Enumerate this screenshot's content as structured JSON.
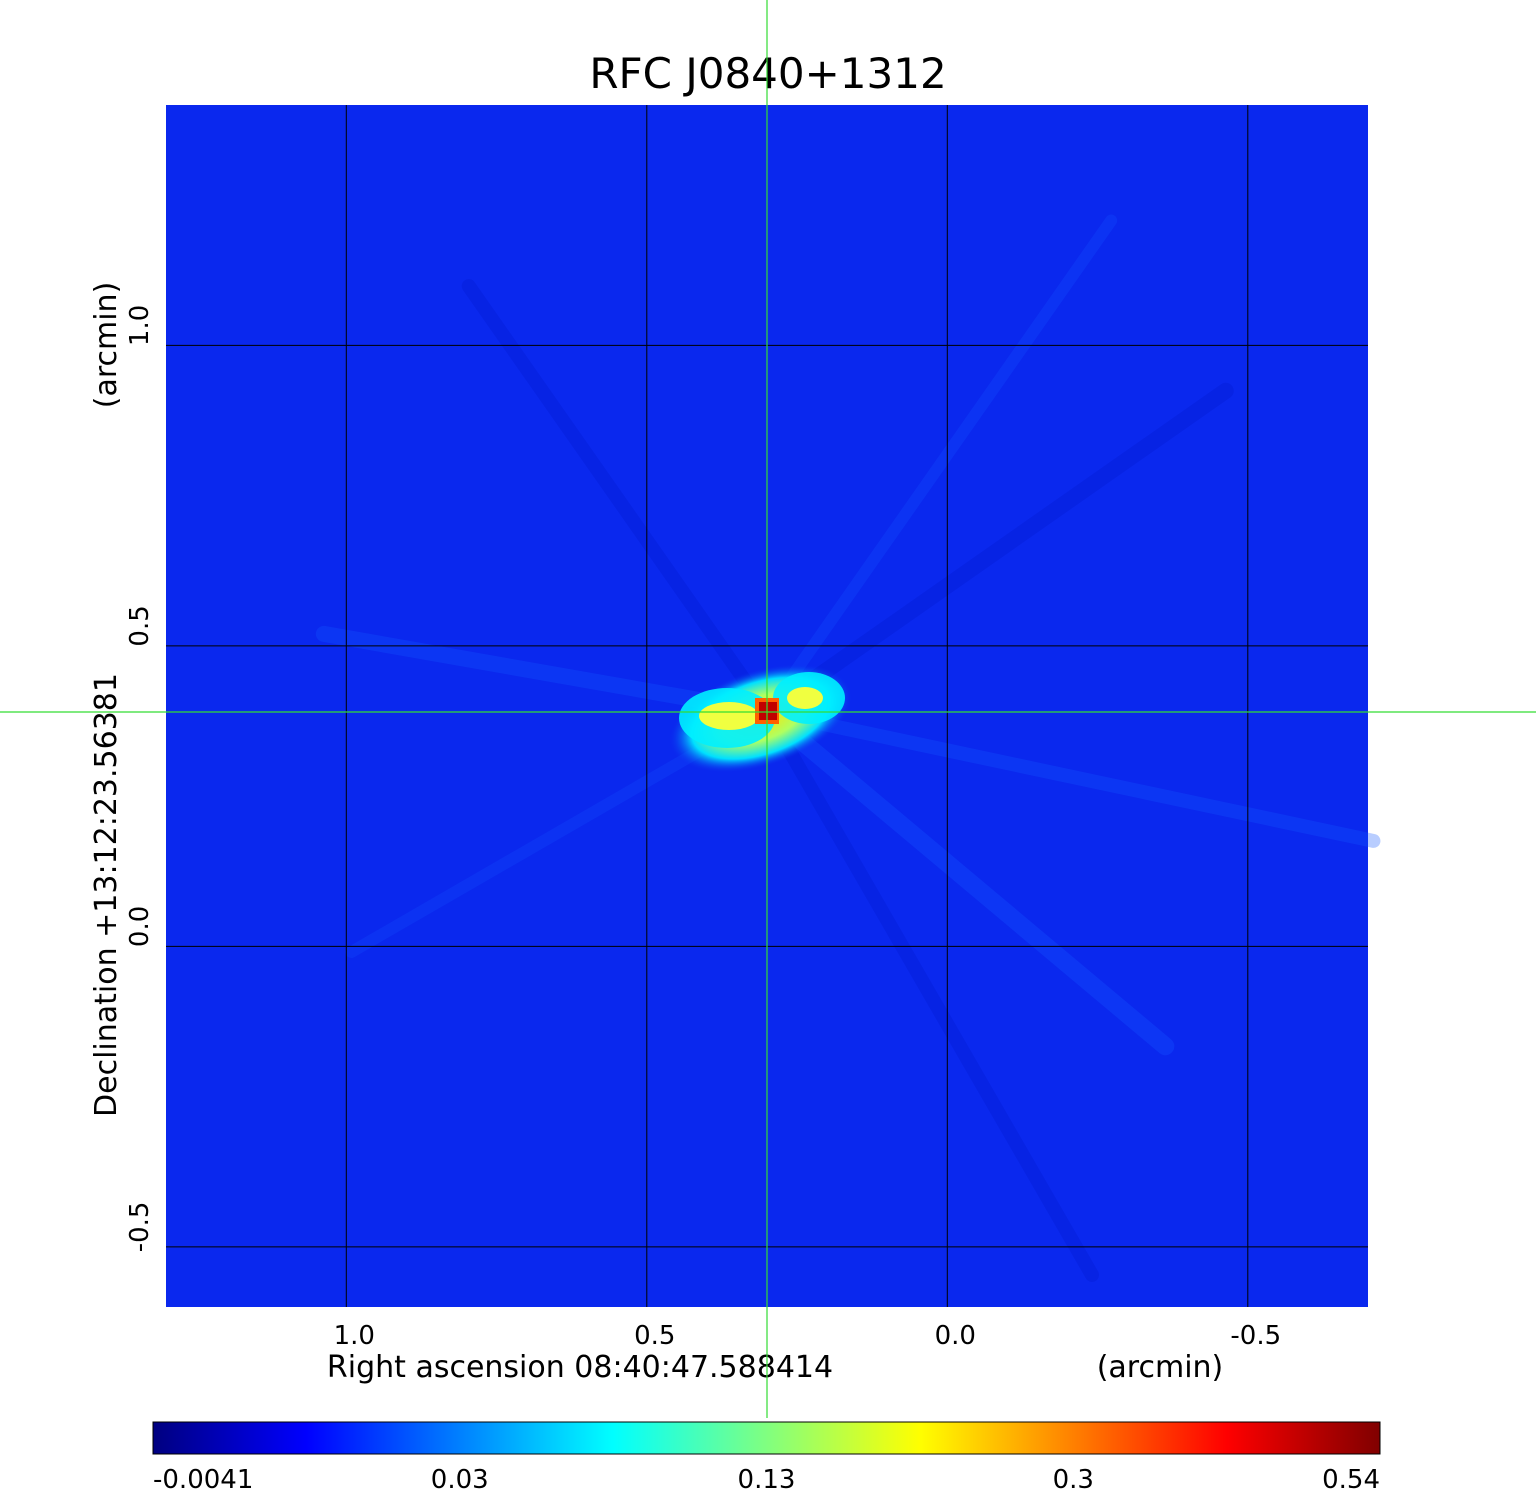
{
  "chart_data": {
    "type": "heatmap",
    "title": "RFC J0840+1312",
    "title_color": "#0a14cc",
    "xlabel": "Right ascension  08:40:47.588414",
    "xunit": "(arcmin)",
    "ylabel": "Declination  +13:12:23.56381",
    "yunit": "(arcmin)",
    "x_axis_reversed": true,
    "xlim": [
      1.3,
      -0.7
    ],
    "ylim": [
      -0.6,
      1.4
    ],
    "xticks": [
      1.0,
      0.5,
      0.0,
      -0.5
    ],
    "xtick_labels": [
      "1.0",
      "0.5",
      "0.0",
      "-0.5"
    ],
    "yticks": [
      -0.5,
      0.0,
      0.5,
      1.0
    ],
    "ytick_labels": [
      "-0.5",
      "0.0",
      "0.5",
      "1.0"
    ],
    "grid": true,
    "crosshair": {
      "x": 0.3,
      "y": 0.39,
      "color": "#33dd33"
    },
    "source_peak": {
      "x": 0.3,
      "y": 0.39,
      "value": 0.54
    },
    "colormap": "jet",
    "colorbar": {
      "ticks": [
        -0.0041,
        0.03,
        0.13,
        0.3,
        0.54
      ],
      "labels": [
        "-0.0041",
        "0.03",
        "0.13",
        "0.3",
        "0.54"
      ],
      "stops": [
        "#000080",
        "#0000ff",
        "#0080ff",
        "#00ffff",
        "#80ff80",
        "#ffff00",
        "#ff8000",
        "#ff0000",
        "#800000"
      ]
    },
    "background_color": "#0a28ee"
  }
}
